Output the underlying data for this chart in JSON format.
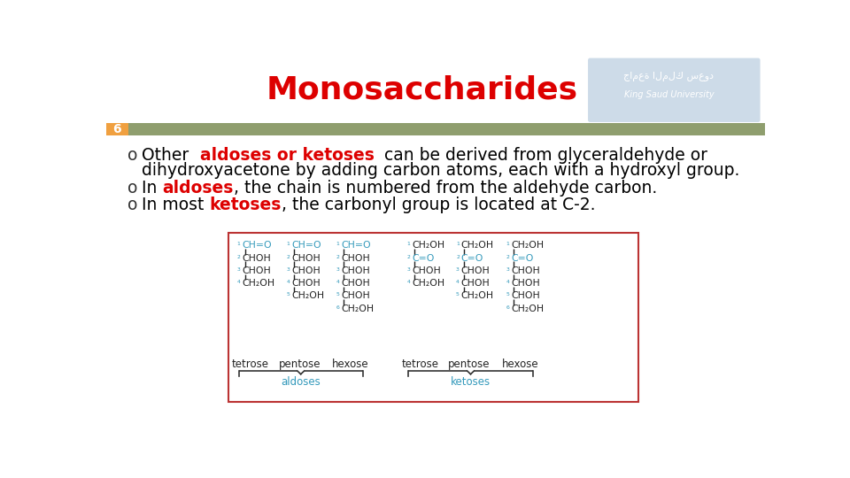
{
  "title": "Monosaccharides",
  "title_color": "#dd0000",
  "title_fontsize": 26,
  "bg_color": "#ffffff",
  "slide_number": "6",
  "slide_number_bg": "#f0a040",
  "header_bar_color": "#8f9e6e",
  "logo_bg": "#cddbe8",
  "diagram_box_color": "#bb3333",
  "diagram_label_color": "#3399bb",
  "structure_color": "#222222",
  "c_num_color": "#3399bb",
  "aldoses_label": "aldoses",
  "ketoses_label": "ketoses",
  "col_labels": [
    "tetrose",
    "pentose",
    "hexose",
    "tetrose",
    "pentose",
    "hexose"
  ]
}
